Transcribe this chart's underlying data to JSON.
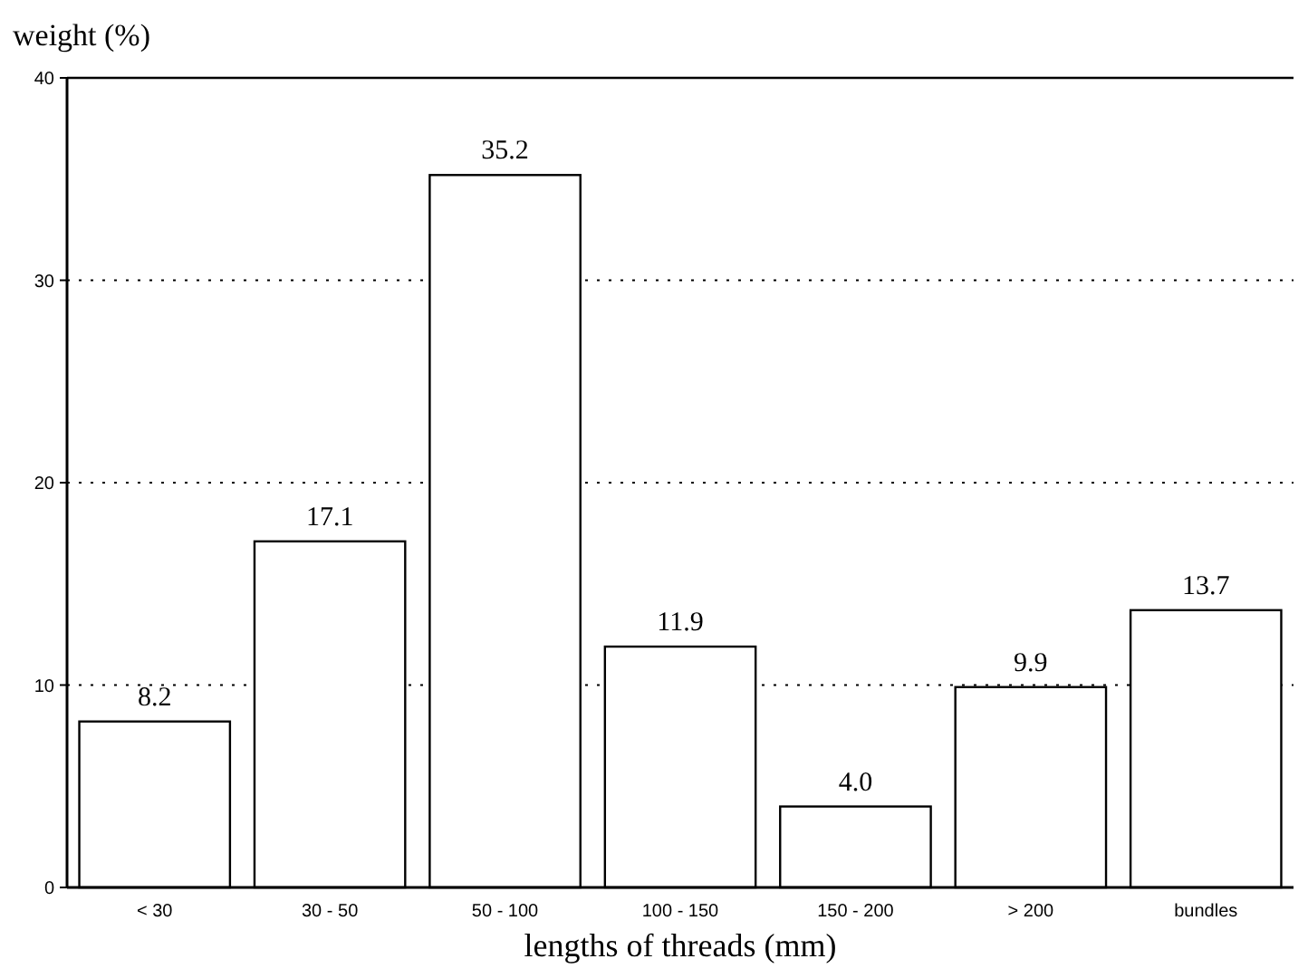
{
  "chart_data": {
    "type": "bar",
    "ylabel": "weight (%)",
    "xlabel": "lengths of threads (mm)",
    "categories": [
      "< 30",
      "30 - 50",
      "50 - 100",
      "100 - 150",
      "150 - 200",
      "> 200",
      "bundles"
    ],
    "values": [
      8.2,
      17.1,
      35.2,
      11.9,
      4.0,
      9.9,
      13.7
    ],
    "value_labels": [
      "8.2",
      "17.1",
      "35.2",
      "11.9",
      "4.0",
      "9.9",
      "13.7"
    ],
    "color": "#ffffff",
    "ylim": [
      0,
      40
    ],
    "yticks": [
      0,
      10,
      20,
      30,
      40
    ],
    "grid": "y"
  }
}
